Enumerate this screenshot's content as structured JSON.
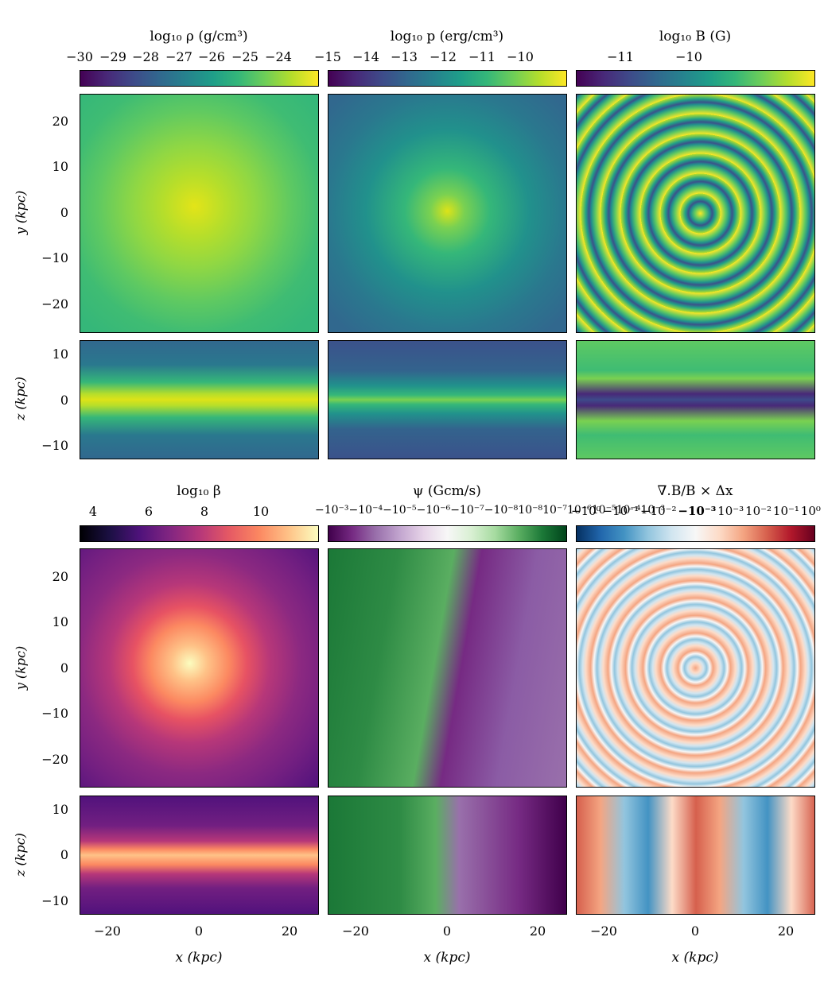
{
  "columns": [
    {
      "colorbar_title": "log₁₀ ρ (g/cm³)",
      "colorbar_ticks": [
        "−30",
        "−29",
        "−28",
        "−27",
        "−26",
        "−25",
        "−24"
      ],
      "colormap": "viridis"
    },
    {
      "colorbar_title": "log₁₀ p (erg/cm³)",
      "colorbar_ticks": [
        "−15",
        "−14",
        "−13",
        "−12",
        "−11",
        "−10"
      ],
      "colormap": "viridis"
    },
    {
      "colorbar_title": "log₁₀ B (G)",
      "colorbar_ticks": [
        "−11",
        "−10"
      ],
      "colormap": "viridis"
    },
    {
      "colorbar_title": "log₁₀ β",
      "colorbar_ticks": [
        "4",
        "6",
        "8",
        "10"
      ],
      "colormap": "magma"
    },
    {
      "colorbar_title": "ψ (Gcm/s)",
      "colorbar_ticks": [
        "−10⁻³",
        "−10⁻⁴",
        "−10⁻⁵",
        "−10⁻⁶",
        "−10⁻⁷",
        "−10⁻⁸",
        "10⁻⁸",
        "10⁻⁷",
        "10⁻⁶",
        "10⁻⁵",
        "10⁻⁴",
        "10⁻³"
      ],
      "colormap": "PRGn"
    },
    {
      "colorbar_title": "∇.B/B × Δx",
      "colorbar_ticks": [
        "−10⁰",
        "−10⁻¹",
        "−10⁻²",
        "−10⁻³",
        "10⁻³",
        "10⁻²",
        "10⁻¹",
        "10⁰"
      ],
      "colormap": "RdBu_r"
    }
  ],
  "axes": {
    "ylabel_face": "y (kpc)",
    "ylabel_edge": "z (kpc)",
    "xlabel": "x (kpc)",
    "yticks_face": [
      "20",
      "10",
      "0",
      "−10",
      "−20"
    ],
    "yticks_edge": [
      "10",
      "0",
      "−10"
    ],
    "xticks": [
      "−20",
      "0",
      "20"
    ]
  }
}
